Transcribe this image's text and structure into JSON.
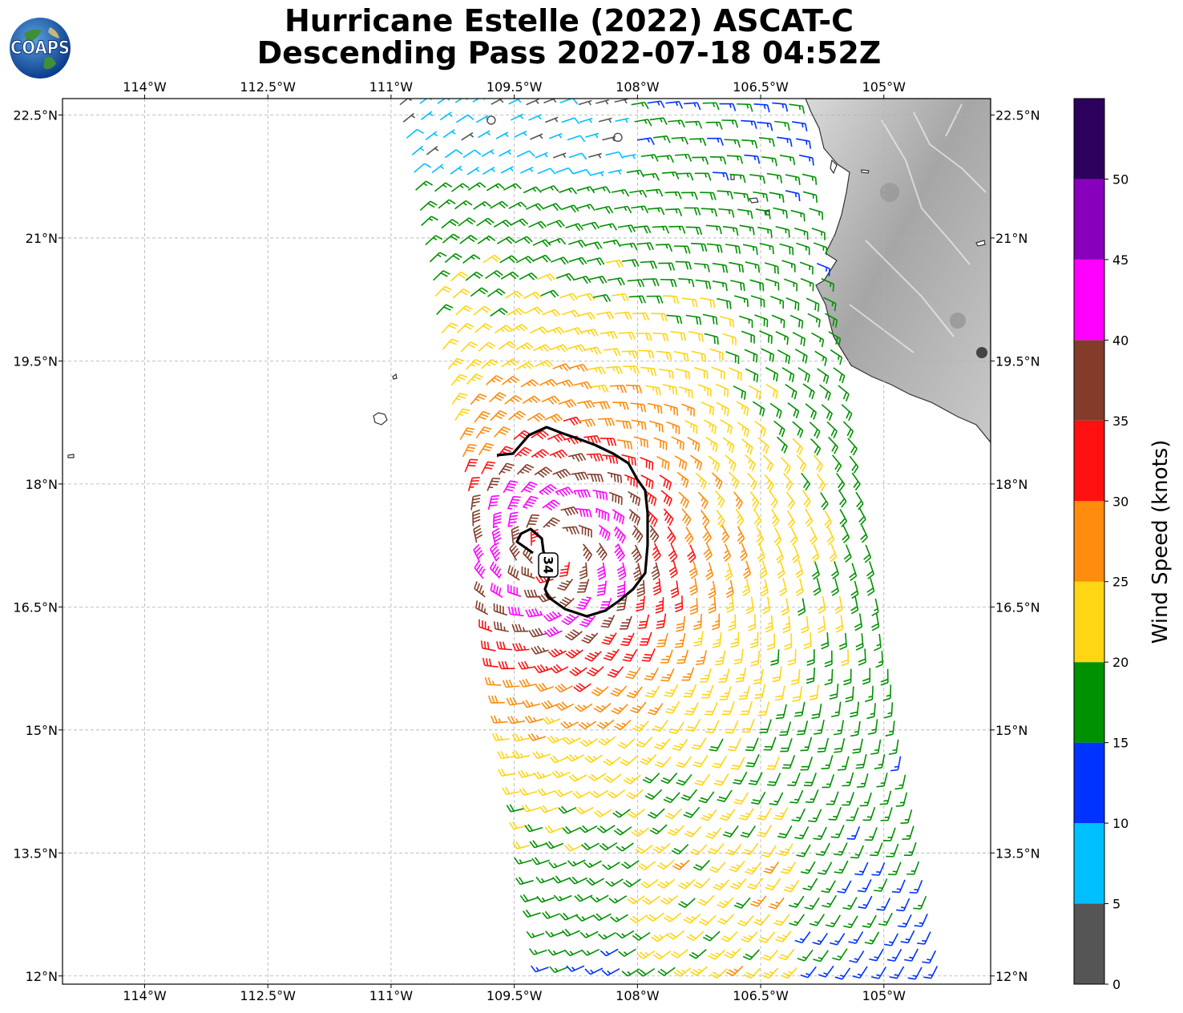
{
  "title": {
    "line1": "Hurricane Estelle (2022) ASCAT-C",
    "line2": "Descending Pass 2022-07-18 04:52Z"
  },
  "logo": {
    "text": "COAPS",
    "icon": "globe-icon"
  },
  "map": {
    "lon_range": [
      -115.0,
      -103.7
    ],
    "lat_range": [
      11.9,
      22.7
    ],
    "lon_ticks": [
      {
        "value": -114.0,
        "label": "114°W"
      },
      {
        "value": -112.5,
        "label": "112.5°W"
      },
      {
        "value": -111.0,
        "label": "111°W"
      },
      {
        "value": -109.5,
        "label": "109.5°W"
      },
      {
        "value": -108.0,
        "label": "108°W"
      },
      {
        "value": -106.5,
        "label": "106.5°W"
      },
      {
        "value": -105.0,
        "label": "105°W"
      }
    ],
    "lat_ticks": [
      {
        "value": 22.5,
        "label": "22.5°N"
      },
      {
        "value": 21.0,
        "label": "21°N"
      },
      {
        "value": 19.5,
        "label": "19.5°N"
      },
      {
        "value": 18.0,
        "label": "18°N"
      },
      {
        "value": 16.5,
        "label": "16.5°N"
      },
      {
        "value": 15.0,
        "label": "15°N"
      },
      {
        "value": 13.5,
        "label": "13.5°N"
      },
      {
        "value": 12.0,
        "label": "12°N"
      }
    ],
    "grid": true,
    "storm_center": {
      "lon": -109.0,
      "lat": 17.15
    },
    "contour": {
      "label": "34",
      "units": "knots"
    }
  },
  "colorbar": {
    "label": "Wind Speed (knots)",
    "bins": [
      {
        "min": 0,
        "max": 5,
        "color": "#555555"
      },
      {
        "min": 5,
        "max": 10,
        "color": "#00bfff"
      },
      {
        "min": 10,
        "max": 15,
        "color": "#0033ff"
      },
      {
        "min": 15,
        "max": 20,
        "color": "#009100"
      },
      {
        "min": 20,
        "max": 25,
        "color": "#ffd514"
      },
      {
        "min": 25,
        "max": 30,
        "color": "#ff8c0c"
      },
      {
        "min": 30,
        "max": 35,
        "color": "#ff1010"
      },
      {
        "min": 35,
        "max": 40,
        "color": "#843c2a"
      },
      {
        "min": 40,
        "max": 45,
        "color": "#ff00ff"
      },
      {
        "min": 45,
        "max": 50,
        "color": "#8800bb"
      },
      {
        "min": 50,
        "max": 55,
        "color": "#2e005e"
      }
    ],
    "ticks": [
      "0",
      "5",
      "10",
      "15",
      "20",
      "25",
      "30",
      "35",
      "40",
      "45",
      "50"
    ]
  }
}
